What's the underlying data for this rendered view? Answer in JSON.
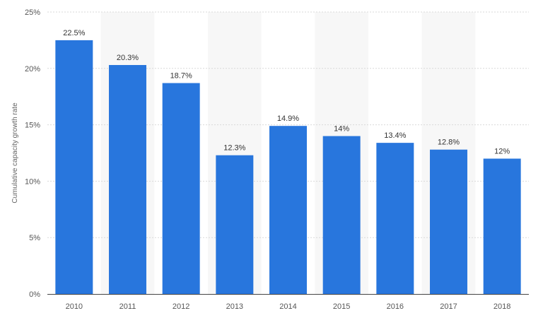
{
  "chart_data": {
    "type": "bar",
    "title": "",
    "xlabel": "",
    "ylabel": "Cumulative capacity growth rate",
    "categories": [
      "2010",
      "2011",
      "2012",
      "2013",
      "2014",
      "2015",
      "2016",
      "2017",
      "2018"
    ],
    "values": [
      22.5,
      20.3,
      18.7,
      12.3,
      14.9,
      14,
      13.4,
      12.8,
      12
    ],
    "value_labels": [
      "22.5%",
      "20.3%",
      "18.7%",
      "12.3%",
      "14.9%",
      "14%",
      "13.4%",
      "12.8%",
      "12%"
    ],
    "yticks": [
      0,
      5,
      10,
      15,
      20,
      25
    ],
    "ytick_labels": [
      "0%",
      "5%",
      "10%",
      "15%",
      "20%",
      "25%"
    ],
    "ylim": [
      0,
      25
    ],
    "grid": true,
    "alternating_column_bands": true,
    "colors": {
      "bar": "#2876dd",
      "band": "#f7f7f7",
      "grid": "#d9d9d9",
      "axis": "#444444"
    }
  }
}
